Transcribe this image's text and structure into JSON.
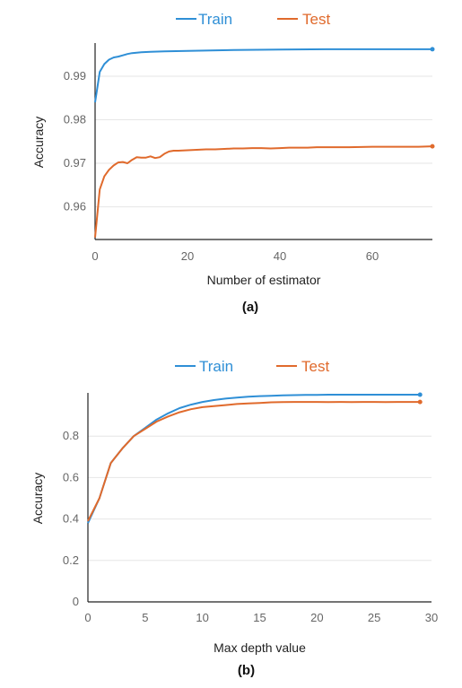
{
  "chart_data": [
    {
      "type": "line",
      "caption": "(a)",
      "xlabel": "Number of estimator",
      "ylabel": "Accuracy",
      "xlim": [
        0,
        73
      ],
      "ylim": [
        0.9525,
        0.9972
      ],
      "xticks": [
        0,
        20,
        40,
        60
      ],
      "yticks": [
        0.96,
        0.97,
        0.98,
        0.99
      ],
      "ytick_labels": [
        "0.96",
        "0.97",
        "0.98",
        "0.99"
      ],
      "grid": true,
      "legend": "top-center",
      "series": [
        {
          "name": "Train",
          "color": "#2f8fd6",
          "x": [
            0,
            1,
            2,
            3,
            4,
            5,
            6,
            7,
            8,
            9,
            10,
            12,
            15,
            20,
            25,
            30,
            40,
            50,
            60,
            70,
            73
          ],
          "y": [
            0.984,
            0.991,
            0.9928,
            0.9938,
            0.9943,
            0.9945,
            0.9948,
            0.9951,
            0.9953,
            0.9954,
            0.9955,
            0.9956,
            0.9957,
            0.9958,
            0.9959,
            0.996,
            0.9961,
            0.9962,
            0.9962,
            0.9962,
            0.9962
          ]
        },
        {
          "name": "Test",
          "color": "#e06a2c",
          "x": [
            0,
            1,
            2,
            3,
            4,
            5,
            6,
            7,
            8,
            9,
            10,
            11,
            12,
            13,
            14,
            15,
            16,
            17,
            18,
            20,
            22,
            24,
            26,
            28,
            30,
            32,
            34,
            36,
            38,
            40,
            42,
            44,
            46,
            48,
            50,
            55,
            60,
            65,
            70,
            73
          ],
          "y": [
            0.953,
            0.964,
            0.967,
            0.9685,
            0.9695,
            0.9702,
            0.9703,
            0.97,
            0.9708,
            0.9714,
            0.9713,
            0.9713,
            0.9716,
            0.9712,
            0.9714,
            0.9722,
            0.9727,
            0.9729,
            0.9729,
            0.973,
            0.9731,
            0.9732,
            0.9732,
            0.9733,
            0.9734,
            0.9734,
            0.9735,
            0.9735,
            0.9734,
            0.9735,
            0.9736,
            0.9736,
            0.9736,
            0.9737,
            0.9737,
            0.9737,
            0.9738,
            0.9738,
            0.9738,
            0.9739
          ]
        }
      ]
    },
    {
      "type": "line",
      "caption": "(b)",
      "xlabel": "Max depth value",
      "ylabel": "Accuracy",
      "xlim": [
        0,
        30
      ],
      "ylim": [
        0,
        1.0
      ],
      "xticks": [
        0,
        5,
        10,
        15,
        20,
        25,
        30
      ],
      "yticks": [
        0,
        0.2,
        0.4,
        0.6,
        0.8
      ],
      "ytick_labels": [
        "0",
        "0.2",
        "0.4",
        "0.6",
        "0.8"
      ],
      "grid": true,
      "legend": "top-center",
      "series": [
        {
          "name": "Train",
          "color": "#2f8fd6",
          "x": [
            0,
            1,
            2,
            3,
            4,
            5,
            6,
            7,
            8,
            9,
            10,
            11,
            12,
            13,
            14,
            15,
            16,
            17,
            18,
            19,
            20,
            21,
            22,
            23,
            24,
            25,
            26,
            27,
            28,
            29
          ],
          "y": [
            0.38,
            0.5,
            0.67,
            0.74,
            0.8,
            0.84,
            0.88,
            0.91,
            0.935,
            0.952,
            0.965,
            0.974,
            0.981,
            0.986,
            0.99,
            0.993,
            0.995,
            0.997,
            0.998,
            0.999,
            0.999,
            1.0,
            1.0,
            1.0,
            1.0,
            1.0,
            1.0,
            1.0,
            1.0,
            1.0
          ]
        },
        {
          "name": "Test",
          "color": "#e06a2c",
          "x": [
            0,
            1,
            2,
            3,
            4,
            5,
            6,
            7,
            8,
            9,
            10,
            11,
            12,
            13,
            14,
            15,
            16,
            17,
            18,
            19,
            20,
            21,
            22,
            23,
            24,
            25,
            26,
            27,
            28,
            29
          ],
          "y": [
            0.39,
            0.5,
            0.67,
            0.74,
            0.8,
            0.835,
            0.87,
            0.895,
            0.915,
            0.93,
            0.94,
            0.945,
            0.95,
            0.955,
            0.958,
            0.96,
            0.963,
            0.964,
            0.965,
            0.965,
            0.965,
            0.964,
            0.965,
            0.964,
            0.965,
            0.965,
            0.964,
            0.965,
            0.965,
            0.965
          ]
        }
      ]
    }
  ]
}
